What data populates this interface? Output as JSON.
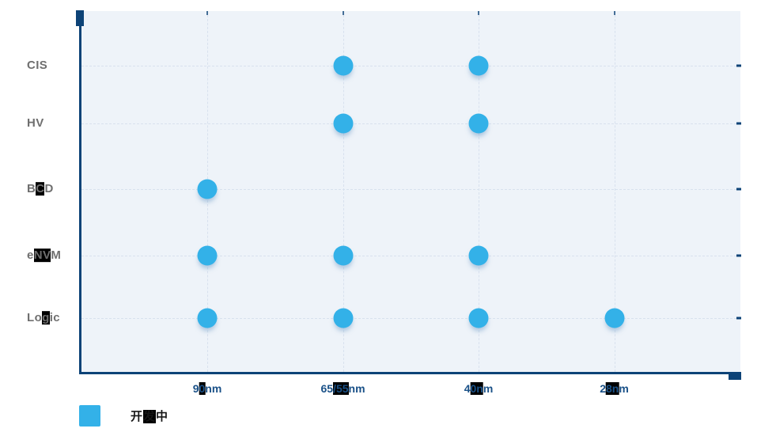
{
  "chart_data": {
    "type": "scatter",
    "title": "",
    "x_categories": [
      "90nm",
      "65/55nm",
      "40nm",
      "28nm"
    ],
    "y_categories": [
      "CIS",
      "HV",
      "BCD",
      "eNVM",
      "Logic"
    ],
    "grid": "dashed",
    "legend_position": "bottom-left",
    "series": [
      {
        "name": "开发中",
        "color": "#2fb2e9",
        "points": [
          {
            "x": "65/55nm",
            "y": "CIS"
          },
          {
            "x": "40nm",
            "y": "CIS"
          },
          {
            "x": "65/55nm",
            "y": "HV"
          },
          {
            "x": "40nm",
            "y": "HV"
          },
          {
            "x": "90nm",
            "y": "BCD"
          },
          {
            "x": "90nm",
            "y": "eNVM"
          },
          {
            "x": "65/55nm",
            "y": "eNVM"
          },
          {
            "x": "40nm",
            "y": "eNVM"
          },
          {
            "x": "90nm",
            "y": "Logic"
          },
          {
            "x": "65/55nm",
            "y": "Logic"
          },
          {
            "x": "40nm",
            "y": "Logic"
          },
          {
            "x": "28nm",
            "y": "Logic"
          }
        ]
      }
    ]
  },
  "axes": {
    "y_labels": [
      {
        "text": "CIS",
        "segments": [
          {
            "t": "CIS"
          }
        ]
      },
      {
        "text": "HV",
        "segments": [
          {
            "t": "HV"
          }
        ]
      },
      {
        "text": "BCD",
        "segments": [
          {
            "t": "B"
          },
          {
            "t": "C",
            "hl": true
          },
          {
            "t": "D"
          }
        ]
      },
      {
        "text": "eNVM",
        "segments": [
          {
            "t": "e"
          },
          {
            "t": "NV",
            "hl": true
          },
          {
            "t": "M"
          }
        ]
      },
      {
        "text": "Logic",
        "segments": [
          {
            "t": "Lo"
          },
          {
            "t": "g",
            "hl": true
          },
          {
            "t": "ic"
          }
        ]
      }
    ],
    "x_labels": [
      {
        "text": "90nm",
        "segments": [
          {
            "t": "9"
          },
          {
            "t": "0",
            "hl": true
          },
          {
            "t": "nm"
          }
        ]
      },
      {
        "text": "65/55nm",
        "segments": [
          {
            "t": "65"
          },
          {
            "t": "/55",
            "hl": true
          },
          {
            "t": "nm"
          }
        ]
      },
      {
        "text": "40nm",
        "segments": [
          {
            "t": "4"
          },
          {
            "t": "0n",
            "hl": true
          },
          {
            "t": "m"
          }
        ]
      },
      {
        "text": "28nm",
        "segments": [
          {
            "t": "2"
          },
          {
            "t": "8n",
            "hl": true
          },
          {
            "t": "m"
          }
        ]
      }
    ]
  },
  "legend": {
    "items": [
      {
        "label": "开发中",
        "color": "#2fb2e9",
        "segments": [
          {
            "t": "开"
          },
          {
            "t": "发",
            "hl": true
          },
          {
            "t": "中"
          }
        ]
      }
    ]
  },
  "colors": {
    "plot_background": "#eef3f9",
    "axis": "#0d4377",
    "gridline": "#d8e1ee",
    "point": "#33b1e8",
    "x_label": "#1a5188",
    "y_label": "#6f6f6f",
    "highlight": "#000000"
  }
}
